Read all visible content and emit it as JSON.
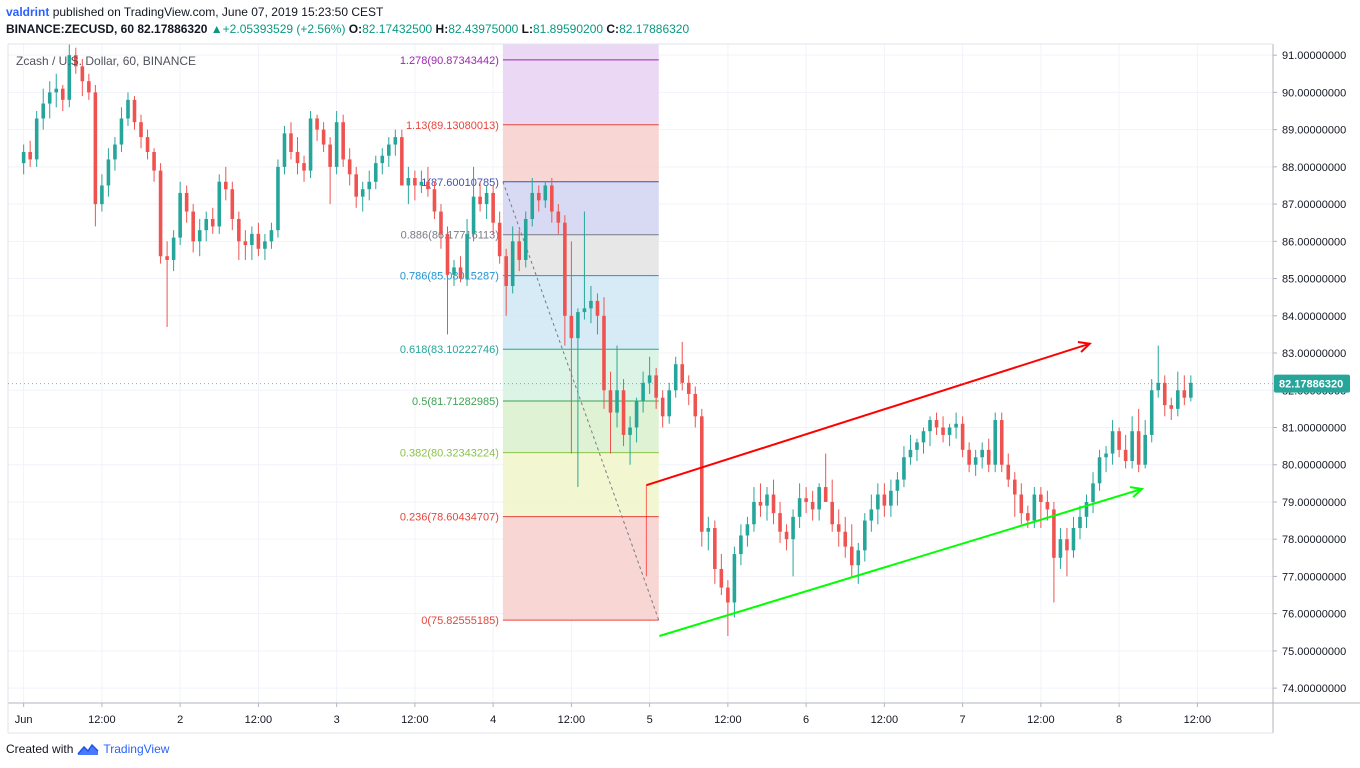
{
  "header": {
    "user": "valdrint",
    "published_text": "published on TradingView.com, June 07, 2019 15:23:50 CEST",
    "symbol": "BINANCE:ZECUSD, 60",
    "last": "82.17886320",
    "change_arrow": "▲",
    "change": "+2.05393529 (+2.56%)",
    "o_label": "O:",
    "o": "82.17432500",
    "h_label": "H:",
    "h": "82.43975000",
    "l_label": "L:",
    "l": "81.89590200",
    "c_label": "C:",
    "c": "82.17886320"
  },
  "legend_label": "Zcash / U.S. Dollar, 60, BINANCE",
  "footer": {
    "created_with": "Created with",
    "brand": "TradingView",
    "logo_icon": "tradingview-logo-icon"
  },
  "colors": {
    "up": "#26a69a",
    "down": "#ef5350",
    "grid": "#f0f3fa",
    "axis_text": "#131722",
    "price_tag_bg": "#26a69a",
    "channel_top": "#ff0000",
    "channel_bottom": "#00ff00"
  },
  "chart_data": {
    "type": "candlestick",
    "title": "Zcash / U.S. Dollar, 60, BINANCE",
    "y_axis": {
      "range": [
        73.6,
        91.3
      ],
      "ticks": [
        "91.00000000",
        "90.00000000",
        "89.00000000",
        "88.00000000",
        "87.00000000",
        "86.00000000",
        "85.00000000",
        "84.00000000",
        "83.00000000",
        "82.00000000",
        "81.00000000",
        "80.00000000",
        "79.00000000",
        "78.00000000",
        "77.00000000",
        "76.00000000",
        "75.00000000",
        "74.00000000"
      ],
      "tick_values": [
        91,
        90,
        89,
        88,
        87,
        86,
        85,
        84,
        83,
        82,
        81,
        80,
        79,
        78,
        77,
        76,
        75,
        74
      ]
    },
    "x_axis": {
      "range_hours": [
        -2.4,
        191.6
      ],
      "labels": [
        {
          "h": 0,
          "text": "Jun"
        },
        {
          "h": 12,
          "text": "12:00"
        },
        {
          "h": 24,
          "text": "2"
        },
        {
          "h": 36,
          "text": "12:00"
        },
        {
          "h": 48,
          "text": "3"
        },
        {
          "h": 60,
          "text": "12:00"
        },
        {
          "h": 72,
          "text": "4"
        },
        {
          "h": 84,
          "text": "12:00"
        },
        {
          "h": 96,
          "text": "5"
        },
        {
          "h": 108,
          "text": "12:00"
        },
        {
          "h": 120,
          "text": "6"
        },
        {
          "h": 132,
          "text": "12:00"
        },
        {
          "h": 144,
          "text": "7"
        },
        {
          "h": 156,
          "text": "12:00"
        },
        {
          "h": 168,
          "text": "8"
        },
        {
          "h": 180,
          "text": "12:00"
        }
      ]
    },
    "current_price": {
      "value": 82.1788632,
      "label": "82.17886320"
    },
    "candles_ohlc": [
      [
        88.1,
        88.6,
        87.8,
        88.4
      ],
      [
        88.4,
        88.7,
        88.0,
        88.2
      ],
      [
        88.2,
        89.5,
        88.0,
        89.3
      ],
      [
        89.3,
        90.1,
        89.0,
        89.7
      ],
      [
        89.7,
        90.3,
        89.3,
        90.0
      ],
      [
        90.0,
        90.5,
        89.6,
        90.1
      ],
      [
        90.1,
        90.2,
        89.5,
        89.8
      ],
      [
        89.8,
        91.3,
        89.6,
        91.0
      ],
      [
        91.0,
        91.2,
        90.5,
        90.7
      ],
      [
        90.7,
        90.9,
        89.9,
        90.3
      ],
      [
        90.3,
        90.5,
        89.8,
        90.0
      ],
      [
        90.0,
        90.2,
        86.4,
        87.0
      ],
      [
        87.0,
        87.8,
        86.8,
        87.5
      ],
      [
        87.5,
        88.5,
        87.2,
        88.2
      ],
      [
        88.2,
        88.8,
        87.9,
        88.6
      ],
      [
        88.6,
        89.6,
        88.4,
        89.3
      ],
      [
        89.3,
        90.0,
        89.1,
        89.8
      ],
      [
        89.8,
        89.9,
        89.0,
        89.2
      ],
      [
        89.2,
        89.4,
        88.5,
        88.8
      ],
      [
        88.8,
        89.0,
        88.2,
        88.4
      ],
      [
        88.4,
        88.5,
        87.6,
        87.9
      ],
      [
        87.9,
        88.1,
        85.4,
        85.6
      ],
      [
        85.6,
        86.0,
        83.7,
        85.5
      ],
      [
        85.5,
        86.3,
        85.2,
        86.1
      ],
      [
        86.1,
        87.6,
        85.9,
        87.3
      ],
      [
        87.3,
        87.5,
        86.5,
        86.8
      ],
      [
        86.8,
        87.0,
        85.7,
        86.0
      ],
      [
        86.0,
        86.6,
        85.6,
        86.3
      ],
      [
        86.3,
        86.8,
        86.0,
        86.6
      ],
      [
        86.6,
        86.9,
        86.2,
        86.4
      ],
      [
        86.4,
        87.8,
        86.2,
        87.6
      ],
      [
        87.6,
        88.0,
        87.1,
        87.4
      ],
      [
        87.4,
        87.6,
        86.3,
        86.6
      ],
      [
        86.6,
        86.8,
        85.5,
        86.0
      ],
      [
        86.0,
        86.3,
        85.5,
        85.9
      ],
      [
        85.9,
        86.4,
        85.5,
        86.2
      ],
      [
        86.2,
        86.5,
        85.6,
        85.8
      ],
      [
        85.8,
        86.2,
        85.5,
        86.0
      ],
      [
        86.0,
        86.5,
        85.8,
        86.3
      ],
      [
        86.3,
        88.2,
        86.1,
        88.0
      ],
      [
        88.0,
        89.1,
        87.8,
        88.9
      ],
      [
        88.9,
        89.2,
        88.2,
        88.4
      ],
      [
        88.4,
        88.8,
        87.8,
        88.1
      ],
      [
        88.1,
        88.3,
        87.6,
        87.9
      ],
      [
        87.9,
        89.5,
        87.7,
        89.3
      ],
      [
        89.3,
        89.4,
        88.7,
        89.0
      ],
      [
        89.0,
        89.2,
        88.4,
        88.6
      ],
      [
        88.6,
        88.8,
        87.0,
        88.0
      ],
      [
        88.0,
        89.5,
        87.8,
        89.2
      ],
      [
        89.2,
        89.4,
        88.0,
        88.2
      ],
      [
        88.2,
        88.5,
        87.5,
        87.8
      ],
      [
        87.8,
        88.0,
        86.9,
        87.2
      ],
      [
        87.2,
        87.6,
        86.8,
        87.4
      ],
      [
        87.4,
        87.9,
        87.1,
        87.6
      ],
      [
        87.6,
        88.3,
        87.4,
        88.1
      ],
      [
        88.1,
        88.5,
        87.8,
        88.3
      ],
      [
        88.3,
        88.8,
        88.0,
        88.6
      ],
      [
        88.6,
        89.0,
        88.3,
        88.8
      ],
      [
        88.8,
        89.0,
        87.8,
        87.5
      ],
      [
        87.5,
        88.0,
        87.0,
        87.7
      ],
      [
        87.7,
        87.9,
        87.1,
        87.5
      ],
      [
        87.5,
        87.9,
        87.3,
        87.6
      ],
      [
        87.6,
        88.0,
        87.2,
        87.4
      ],
      [
        87.4,
        87.6,
        86.6,
        86.8
      ],
      [
        86.8,
        87.0,
        85.8,
        86.2
      ],
      [
        86.2,
        86.4,
        83.5,
        85.1
      ],
      [
        85.1,
        85.5,
        84.8,
        85.3
      ],
      [
        85.3,
        85.6,
        84.9,
        85.0
      ],
      [
        85.0,
        86.6,
        84.8,
        86.2
      ],
      [
        86.2,
        88.0,
        86.0,
        87.2
      ],
      [
        87.2,
        87.6,
        86.8,
        87.0
      ],
      [
        87.0,
        87.5,
        86.6,
        87.3
      ],
      [
        87.3,
        87.5,
        86.2,
        86.5
      ],
      [
        86.5,
        86.8,
        85.4,
        85.6
      ],
      [
        85.6,
        85.8,
        84.0,
        84.8
      ],
      [
        84.8,
        86.4,
        84.6,
        86.0
      ],
      [
        86.0,
        86.3,
        85.2,
        85.5
      ],
      [
        85.5,
        86.8,
        85.3,
        86.6
      ],
      [
        86.6,
        87.7,
        86.4,
        87.3
      ],
      [
        87.3,
        87.5,
        86.8,
        87.1
      ],
      [
        87.1,
        87.6,
        86.9,
        87.5
      ],
      [
        87.5,
        87.7,
        86.5,
        86.8
      ],
      [
        86.8,
        87.0,
        86.2,
        86.5
      ],
      [
        86.5,
        86.7,
        83.2,
        84.0
      ],
      [
        84.0,
        86.0,
        80.3,
        83.4
      ],
      [
        83.4,
        84.2,
        79.4,
        84.1
      ],
      [
        84.1,
        86.8,
        83.9,
        84.2
      ],
      [
        84.2,
        84.8,
        83.8,
        84.4
      ],
      [
        84.4,
        84.6,
        83.5,
        84.0
      ],
      [
        84.0,
        84.5,
        81.5,
        82.0
      ],
      [
        82.0,
        82.5,
        80.3,
        81.4
      ],
      [
        81.4,
        83.2,
        81.0,
        82.0
      ],
      [
        82.0,
        82.3,
        80.5,
        80.8
      ],
      [
        80.8,
        81.3,
        80.0,
        81.0
      ],
      [
        81.0,
        81.8,
        80.6,
        81.7
      ],
      [
        81.7,
        82.5,
        81.4,
        82.2
      ],
      [
        82.2,
        82.9,
        81.9,
        82.4
      ],
      [
        82.4,
        82.6,
        81.5,
        81.8
      ],
      [
        81.8,
        82.0,
        81.0,
        81.3
      ],
      [
        81.3,
        82.2,
        81.1,
        82.0
      ],
      [
        82.0,
        82.9,
        81.8,
        82.7
      ],
      [
        82.7,
        83.3,
        82.0,
        82.2
      ],
      [
        82.2,
        82.4,
        81.6,
        81.9
      ],
      [
        81.9,
        82.1,
        81.0,
        81.3
      ],
      [
        81.3,
        81.5,
        77.8,
        78.2
      ],
      [
        78.2,
        78.6,
        77.7,
        78.3
      ],
      [
        78.3,
        78.5,
        76.8,
        77.2
      ],
      [
        77.2,
        77.6,
        76.5,
        76.7
      ],
      [
        76.7,
        76.9,
        75.4,
        76.3
      ],
      [
        76.3,
        77.8,
        75.9,
        77.6
      ],
      [
        77.6,
        78.4,
        77.3,
        78.1
      ],
      [
        78.1,
        78.6,
        77.8,
        78.4
      ],
      [
        78.4,
        79.4,
        78.2,
        79.0
      ],
      [
        79.0,
        79.5,
        78.6,
        78.9
      ],
      [
        78.9,
        79.4,
        78.5,
        79.2
      ],
      [
        79.2,
        79.6,
        78.4,
        78.7
      ],
      [
        78.7,
        79.0,
        77.9,
        78.2
      ],
      [
        78.2,
        78.4,
        77.7,
        78.0
      ],
      [
        78.0,
        78.8,
        77.0,
        78.6
      ],
      [
        78.6,
        79.5,
        78.3,
        79.1
      ],
      [
        79.1,
        79.4,
        78.7,
        79.0
      ],
      [
        79.0,
        79.3,
        78.5,
        78.8
      ],
      [
        78.8,
        79.5,
        78.5,
        79.4
      ],
      [
        79.4,
        80.3,
        79.0,
        79.0
      ],
      [
        79.0,
        79.6,
        78.2,
        78.4
      ],
      [
        78.4,
        78.8,
        77.8,
        78.2
      ],
      [
        78.2,
        78.6,
        77.5,
        77.8
      ],
      [
        77.8,
        78.4,
        77.0,
        77.3
      ],
      [
        77.3,
        77.9,
        76.8,
        77.7
      ],
      [
        77.7,
        78.7,
        77.4,
        78.5
      ],
      [
        78.5,
        79.2,
        78.2,
        78.8
      ],
      [
        78.8,
        79.5,
        78.4,
        79.2
      ],
      [
        79.2,
        79.5,
        78.6,
        78.9
      ],
      [
        78.9,
        79.6,
        78.6,
        79.3
      ],
      [
        79.3,
        79.8,
        78.9,
        79.6
      ],
      [
        79.6,
        80.5,
        79.4,
        80.2
      ],
      [
        80.2,
        80.8,
        80.0,
        80.4
      ],
      [
        80.4,
        80.7,
        80.1,
        80.6
      ],
      [
        80.6,
        81.0,
        80.3,
        80.9
      ],
      [
        80.9,
        81.3,
        80.5,
        81.2
      ],
      [
        81.2,
        81.4,
        80.8,
        81.0
      ],
      [
        81.0,
        81.3,
        80.6,
        80.8
      ],
      [
        80.8,
        81.1,
        80.5,
        81.0
      ],
      [
        81.0,
        81.4,
        80.7,
        81.1
      ],
      [
        81.1,
        81.3,
        80.2,
        80.4
      ],
      [
        80.4,
        80.6,
        79.8,
        80.0
      ],
      [
        80.0,
        80.4,
        79.7,
        80.2
      ],
      [
        80.2,
        80.6,
        79.9,
        80.4
      ],
      [
        80.4,
        80.7,
        79.8,
        80.0
      ],
      [
        80.0,
        81.4,
        79.8,
        81.2
      ],
      [
        81.2,
        81.4,
        79.8,
        80.0
      ],
      [
        80.0,
        80.3,
        79.4,
        79.6
      ],
      [
        79.6,
        79.8,
        78.6,
        79.2
      ],
      [
        79.2,
        79.5,
        78.4,
        78.7
      ],
      [
        78.7,
        78.9,
        78.3,
        78.5
      ],
      [
        78.5,
        79.4,
        78.3,
        79.2
      ],
      [
        79.2,
        79.4,
        78.3,
        79.0
      ],
      [
        79.0,
        79.3,
        78.5,
        78.8
      ],
      [
        78.8,
        79.0,
        76.3,
        77.5
      ],
      [
        77.5,
        78.3,
        77.2,
        78.0
      ],
      [
        78.0,
        78.3,
        77.0,
        77.7
      ],
      [
        77.7,
        78.6,
        77.5,
        78.3
      ],
      [
        78.3,
        78.9,
        78.0,
        78.6
      ],
      [
        78.6,
        79.2,
        78.3,
        79.0
      ],
      [
        79.0,
        79.8,
        78.7,
        79.5
      ],
      [
        79.5,
        80.4,
        79.3,
        80.2
      ],
      [
        80.2,
        80.5,
        79.8,
        80.3
      ],
      [
        80.3,
        81.2,
        80.0,
        80.9
      ],
      [
        80.9,
        81.0,
        80.2,
        80.4
      ],
      [
        80.4,
        80.8,
        79.9,
        80.1
      ],
      [
        80.1,
        81.3,
        79.9,
        80.9
      ],
      [
        80.9,
        81.5,
        79.8,
        80.0
      ],
      [
        80.0,
        81.2,
        79.9,
        80.8
      ],
      [
        80.8,
        82.3,
        80.6,
        82.0
      ],
      [
        82.0,
        83.2,
        81.8,
        82.2
      ],
      [
        82.2,
        82.4,
        81.3,
        81.6
      ],
      [
        81.6,
        81.8,
        81.2,
        81.5
      ],
      [
        81.5,
        82.5,
        81.3,
        82.0
      ],
      [
        82.0,
        82.4,
        81.6,
        81.8
      ],
      [
        81.8,
        82.4,
        81.7,
        82.2
      ]
    ],
    "fibonacci": {
      "start_hour": 73.5,
      "end_hour": 97.4,
      "levels": [
        {
          "ratio": 0,
          "price": 75.82555185,
          "label": "0(75.82555185)",
          "color": "#e6453b",
          "fill": "#f6cfcd"
        },
        {
          "ratio": 0.236,
          "price": 78.60434707,
          "label": "0.236(78.60434707)",
          "color": "#e6453b",
          "fill": "#f0f6c9"
        },
        {
          "ratio": 0.382,
          "price": 80.32343224,
          "label": "0.382(80.32343224)",
          "color": "#8bc34a",
          "fill": "#d9f0cd"
        },
        {
          "ratio": 0.5,
          "price": 81.71282985,
          "label": "0.5(81.71282985)",
          "color": "#3ea354",
          "fill": "#d6f2e0"
        },
        {
          "ratio": 0.618,
          "price": 83.10222746,
          "label": "0.618(83.10222746)",
          "color": "#26a69a",
          "fill": "#cfe8f3"
        },
        {
          "ratio": 0.786,
          "price": 85.08015287,
          "label": "0.786(85.08015287)",
          "color": "#1e95d4",
          "fill": "#e3e3e3"
        },
        {
          "ratio": 0.886,
          "price": 86.17716113,
          "label": "0.886(86.17716113)",
          "color": "#787b86",
          "fill": "#d0d3f0"
        },
        {
          "ratio": 1,
          "price": 87.60010785,
          "label": "1(87.60010785)",
          "color": "#3f51b5",
          "fill": "#f6cfcd"
        },
        {
          "ratio": 1.13,
          "price": 89.13080013,
          "label": "1.13(89.13080013)",
          "color": "#e6453b",
          "fill": "#e8d1f2"
        },
        {
          "ratio": 1.278,
          "price": 90.87343442,
          "label": "1.278(90.87343442)",
          "color": "#9c27b0",
          "fill": "#e8d1f2"
        }
      ],
      "trend_line": {
        "from": {
          "h": 73.5,
          "price": 87.6
        },
        "to": {
          "h": 97.4,
          "price": 75.826
        }
      }
    },
    "channel": {
      "upper": {
        "from": {
          "h": 95.5,
          "price": 79.45
        },
        "to": {
          "h": 163.5,
          "price": 83.25
        },
        "color": "#ff0000",
        "arrow": true
      },
      "lower": {
        "from": {
          "h": 97.5,
          "price": 75.4
        },
        "to": {
          "h": 171.5,
          "price": 79.35
        },
        "color": "#00ff00",
        "arrow": true
      }
    }
  }
}
